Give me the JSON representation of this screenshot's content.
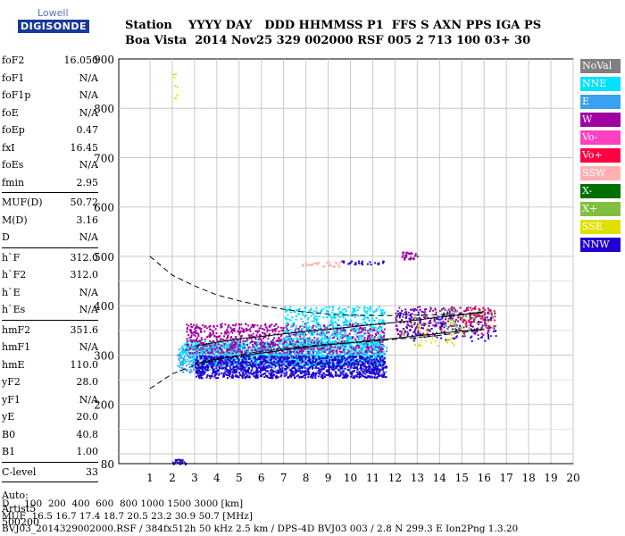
{
  "logo": {
    "top": "Lowell",
    "bottom": "DIGISONDE"
  },
  "header": {
    "line1": "Station    YYYY DAY   DDD HHMMSS P1  FFS S AXN PPS IGA PS",
    "line2": "Boa Vista  2014 Nov25 329 002000 RSF 005 2 713 100 03+ 30"
  },
  "params": [
    {
      "group": [
        {
          "label": "foF2",
          "value": "16.050"
        },
        {
          "label": "foF1",
          "value": "N/A"
        },
        {
          "label": "foF1p",
          "value": "N/A"
        },
        {
          "label": "foE",
          "value": "N/A"
        },
        {
          "label": "foEp",
          "value": "0.47"
        },
        {
          "label": "fxI",
          "value": "16.45"
        },
        {
          "label": "foEs",
          "value": "N/A"
        },
        {
          "label": "fmin",
          "value": "2.95"
        }
      ]
    },
    {
      "group": [
        {
          "label": "MUF(D)",
          "value": "50.72"
        },
        {
          "label": "M(D)",
          "value": "3.16"
        },
        {
          "label": "D",
          "value": "N/A"
        }
      ]
    },
    {
      "group": [
        {
          "label": "h`F",
          "value": "312.0"
        },
        {
          "label": "h`F2",
          "value": "312.0"
        },
        {
          "label": "h`E",
          "value": "N/A"
        },
        {
          "label": "h`Es",
          "value": "N/A"
        }
      ]
    },
    {
      "group": [
        {
          "label": "hmF2",
          "value": "351.6"
        },
        {
          "label": "hmF1",
          "value": "N/A"
        },
        {
          "label": "hmE",
          "value": "110.0"
        },
        {
          "label": "yF2",
          "value": "28.0"
        },
        {
          "label": "yF1",
          "value": "N/A"
        },
        {
          "label": "yE",
          "value": "20.0"
        },
        {
          "label": "B0",
          "value": "40.8"
        },
        {
          "label": "B1",
          "value": "1.00"
        }
      ]
    },
    {
      "group": [
        {
          "label": "C-level",
          "value": "33"
        }
      ]
    }
  ],
  "auto": [
    "Auto:",
    "Artist5",
    "500200"
  ],
  "legend": [
    {
      "label": "NoVal",
      "color": "#808080"
    },
    {
      "label": "NNE",
      "color": "#00e0ff"
    },
    {
      "label": "E",
      "color": "#3aa0f0"
    },
    {
      "label": "W",
      "color": "#a000a0"
    },
    {
      "label": "Vo-",
      "color": "#ff40c0"
    },
    {
      "label": "Vo+",
      "color": "#ff0040"
    },
    {
      "label": "SSW",
      "color": "#ffb0b0"
    },
    {
      "label": "X-",
      "color": "#007000"
    },
    {
      "label": "X+",
      "color": "#80c040"
    },
    {
      "label": "SSE",
      "color": "#e0e000"
    },
    {
      "label": "NNW",
      "color": "#2000d0"
    }
  ],
  "footer": {
    "line1": "D     100  200  400  600  800 1000 1500 3000 [km]",
    "line2": "MUF  16.5 16.7 17.4 18.7 20.5 23.2 30.9 50.7 [MHz]",
    "line3": "BVJ03_2014329002000.RSF / 384fx512h 50 kHz 2.5 km / DPS-4D BVJ03 003 / 2.8 N 299.3 E Ion2Png 1.3.20"
  },
  "chart_data": {
    "type": "scatter",
    "xlim": [
      1,
      20
    ],
    "ylim": [
      80,
      900
    ],
    "xticks": [
      1,
      2,
      3,
      4,
      5,
      6,
      7,
      8,
      9,
      10,
      11,
      12,
      13,
      14,
      15,
      16,
      17,
      18,
      19,
      20
    ],
    "yticks": [
      80,
      200,
      300,
      400,
      500,
      600,
      700,
      800,
      900
    ],
    "grid": true,
    "clusters": [
      {
        "series": "NNE",
        "x": [
          2.3,
          11.5
        ],
        "y": [
          280,
          330
        ],
        "n": 1400
      },
      {
        "series": "E",
        "x": [
          2.2,
          11.6
        ],
        "y": [
          265,
          320
        ],
        "n": 700
      },
      {
        "series": "NNW",
        "x": [
          3.0,
          11.6
        ],
        "y": [
          255,
          300
        ],
        "n": 1300
      },
      {
        "series": "W",
        "x": [
          2.6,
          11.5
        ],
        "y": [
          305,
          365
        ],
        "n": 900
      },
      {
        "series": "NNE",
        "x": [
          7.0,
          11.5
        ],
        "y": [
          320,
          400
        ],
        "n": 500
      },
      {
        "series": "NNW",
        "x": [
          12.0,
          16.5
        ],
        "y": [
          330,
          395
        ],
        "n": 220
      },
      {
        "series": "W",
        "x": [
          12.0,
          16.3
        ],
        "y": [
          340,
          400
        ],
        "n": 180
      },
      {
        "series": "SSE",
        "x": [
          12.2,
          15.0
        ],
        "y": [
          320,
          380
        ],
        "n": 50
      },
      {
        "series": "X+",
        "x": [
          14.0,
          16.5
        ],
        "y": [
          350,
          395
        ],
        "n": 60
      },
      {
        "series": "Vo+",
        "x": [
          15.0,
          16.5
        ],
        "y": [
          360,
          400
        ],
        "n": 50
      },
      {
        "series": "SSW",
        "x": [
          7.8,
          9.5
        ],
        "y": [
          480,
          490
        ],
        "n": 30
      },
      {
        "series": "W",
        "x": [
          12.2,
          13.0
        ],
        "y": [
          495,
          510
        ],
        "n": 30
      },
      {
        "series": "NNW",
        "x": [
          9.5,
          11.5
        ],
        "y": [
          485,
          492
        ],
        "n": 30
      },
      {
        "series": "SSE",
        "x": [
          2.0,
          2.2
        ],
        "y": [
          800,
          900
        ],
        "n": 8
      },
      {
        "series": "NNW",
        "x": [
          2.0,
          2.6
        ],
        "y": [
          80,
          90
        ],
        "n": 25
      }
    ],
    "traces": [
      {
        "name": "profile",
        "style": "dashed",
        "x": [
          1.0,
          2.0,
          3.0,
          4.0,
          5.0,
          6.0,
          7.0,
          8.0,
          9.0,
          10.0,
          11.0,
          12.0,
          13.0,
          14.0,
          15.0,
          16.0
        ],
        "y": [
          500,
          462,
          440,
          422,
          410,
          400,
          393,
          387,
          383,
          381,
          380,
          380,
          381,
          382,
          383,
          385
        ]
      },
      {
        "name": "profile-lower",
        "style": "dashed",
        "x": [
          1.0,
          2.0,
          3.0,
          4.0,
          5.0,
          6.0,
          7.0,
          8.0,
          9.0,
          10.0,
          11.0,
          12.0,
          13.0,
          14.0,
          15.0,
          16.0
        ],
        "y": [
          232,
          262,
          279,
          291,
          300,
          308,
          313,
          318,
          322,
          325,
          328,
          332,
          336,
          340,
          346,
          352
        ]
      },
      {
        "name": "trace-upper",
        "style": "solid",
        "x": [
          3.0,
          4.0,
          5.0,
          6.0,
          7.0,
          8.0,
          9.0,
          10.0,
          11.0,
          12.0,
          13.0,
          14.0,
          15.0,
          16.0
        ],
        "y": [
          318,
          326,
          333,
          338,
          343,
          348,
          352,
          357,
          362,
          366,
          371,
          377,
          382,
          388
        ]
      },
      {
        "name": "trace-lower",
        "style": "solid",
        "x": [
          3.0,
          4.0,
          5.0,
          6.0,
          7.0,
          8.0,
          9.0,
          10.0,
          11.0,
          12.0,
          13.0,
          14.0,
          15.0,
          16.0
        ],
        "y": [
          283,
          292,
          298,
          304,
          310,
          316,
          321,
          325,
          330,
          334,
          339,
          344,
          349,
          352
        ]
      }
    ]
  }
}
